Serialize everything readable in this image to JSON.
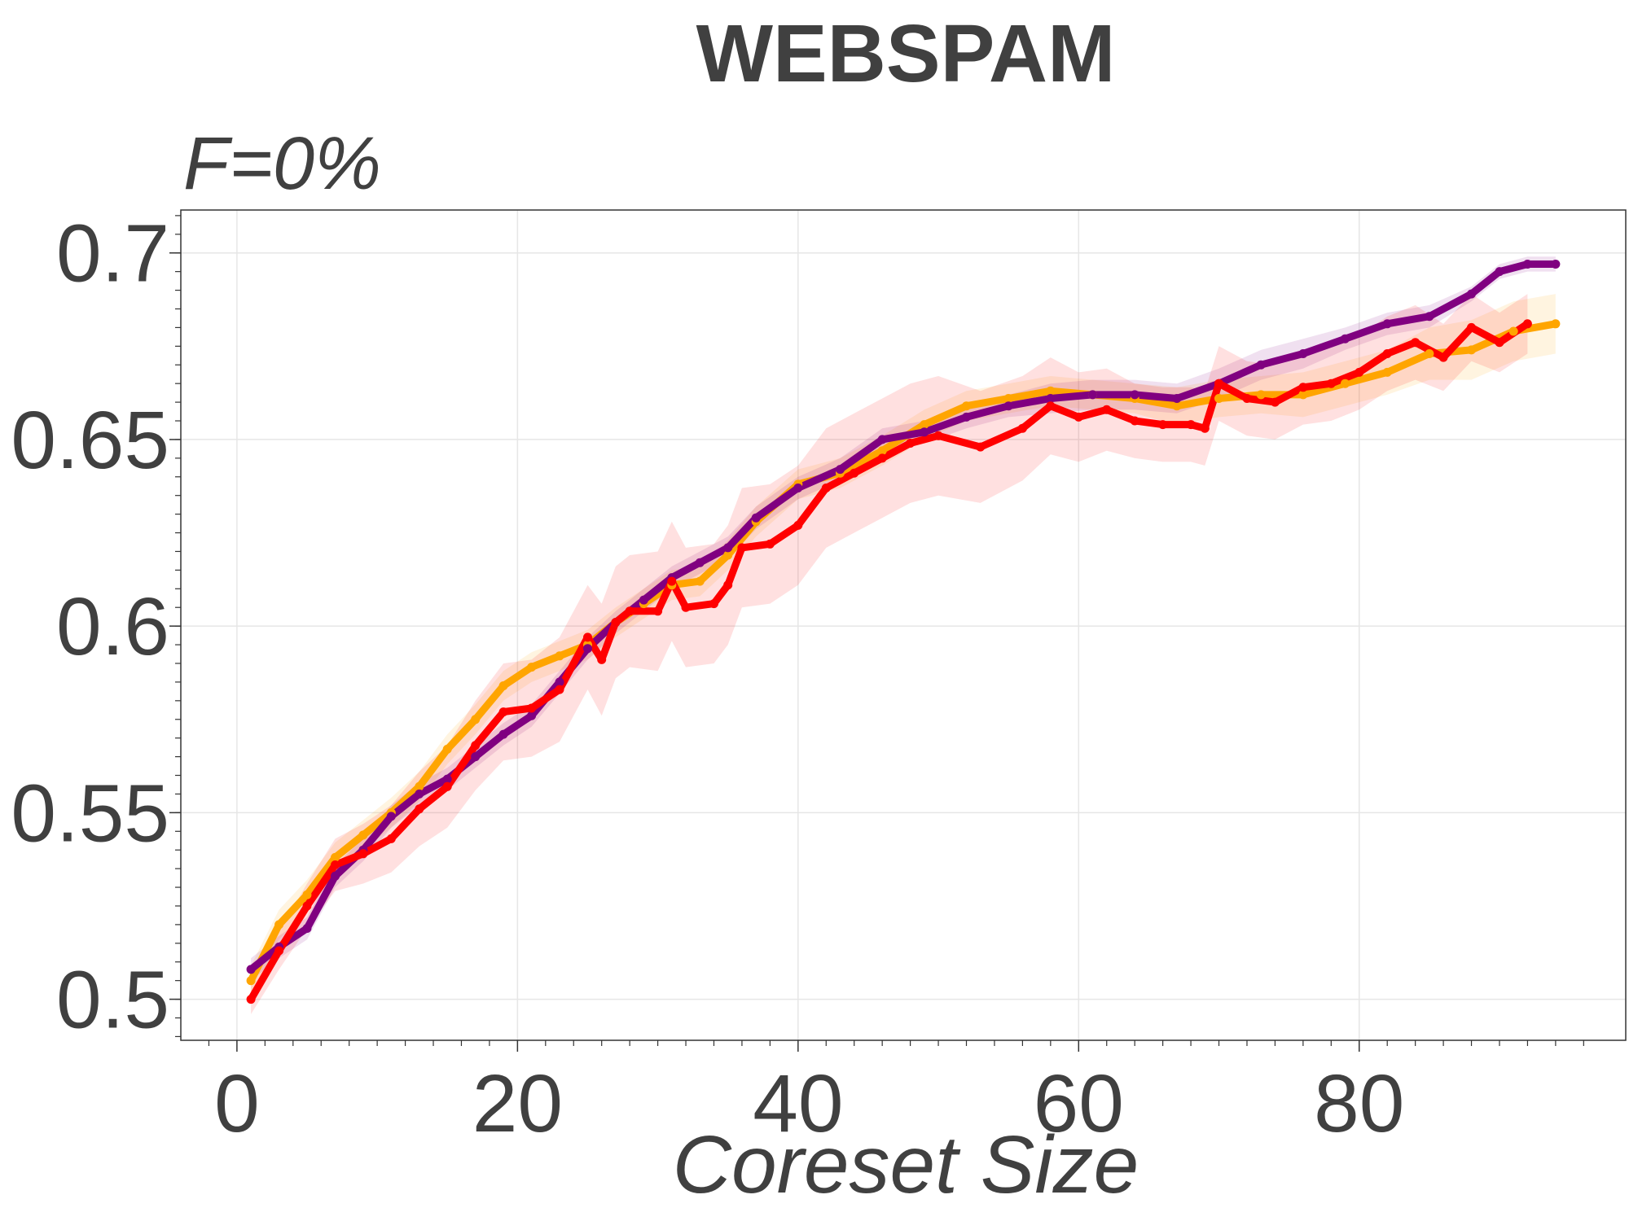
{
  "chart_data": {
    "type": "line",
    "title": "WEBSPAM",
    "subtitle": "F=0%",
    "xlabel": "Coreset Size",
    "ylabel": "",
    "xlim": [
      -4,
      99
    ],
    "ylim": [
      0.489,
      0.7115
    ],
    "xticks": [
      0,
      20,
      40,
      60,
      80
    ],
    "yticks": [
      0.5,
      0.55,
      0.6,
      0.65,
      0.7
    ],
    "xtick_labels": [
      "0",
      "20",
      "40",
      "60",
      "80"
    ],
    "ytick_labels": [
      "0.5",
      "0.55",
      "0.6",
      "0.65",
      "0.7"
    ],
    "grid": true,
    "series": [
      {
        "color": "#ffa500",
        "x": [
          1,
          3,
          5,
          7,
          9,
          11,
          13,
          15,
          17,
          19,
          21,
          23,
          25,
          27,
          29,
          31,
          33,
          35,
          37,
          40,
          43,
          46,
          49,
          52,
          55,
          58,
          61,
          64,
          67,
          70,
          73,
          76,
          79,
          82,
          85,
          88,
          91,
          94
        ],
        "y": [
          0.505,
          0.52,
          0.528,
          0.538,
          0.544,
          0.55,
          0.557,
          0.567,
          0.575,
          0.584,
          0.589,
          0.592,
          0.595,
          0.601,
          0.606,
          0.611,
          0.612,
          0.619,
          0.628,
          0.638,
          0.641,
          0.647,
          0.654,
          0.659,
          0.661,
          0.663,
          0.662,
          0.661,
          0.659,
          0.661,
          0.662,
          0.662,
          0.665,
          0.668,
          0.673,
          0.674,
          0.679,
          0.681
        ],
        "band": [
          0.004,
          0.004,
          0.004,
          0.004,
          0.004,
          0.004,
          0.004,
          0.004,
          0.004,
          0.004,
          0.004,
          0.004,
          0.004,
          0.004,
          0.004,
          0.004,
          0.004,
          0.004,
          0.004,
          0.004,
          0.004,
          0.004,
          0.004,
          0.004,
          0.004,
          0.004,
          0.004,
          0.004,
          0.005,
          0.005,
          0.005,
          0.006,
          0.006,
          0.006,
          0.007,
          0.008,
          0.008,
          0.008
        ]
      },
      {
        "color": "#800080",
        "x": [
          1,
          3,
          5,
          7,
          9,
          11,
          13,
          15,
          17,
          19,
          21,
          23,
          25,
          27,
          29,
          31,
          33,
          35,
          37,
          40,
          43,
          46,
          49,
          52,
          55,
          58,
          61,
          64,
          67,
          70,
          73,
          76,
          79,
          82,
          85,
          88,
          90,
          92,
          94
        ],
        "y": [
          0.508,
          0.514,
          0.519,
          0.533,
          0.54,
          0.549,
          0.555,
          0.559,
          0.565,
          0.571,
          0.576,
          0.585,
          0.594,
          0.601,
          0.607,
          0.613,
          0.617,
          0.621,
          0.629,
          0.637,
          0.642,
          0.65,
          0.652,
          0.656,
          0.659,
          0.661,
          0.662,
          0.662,
          0.661,
          0.665,
          0.67,
          0.673,
          0.677,
          0.681,
          0.683,
          0.689,
          0.695,
          0.697,
          0.697
        ],
        "band": [
          0.003,
          0.003,
          0.003,
          0.003,
          0.003,
          0.003,
          0.003,
          0.003,
          0.003,
          0.003,
          0.003,
          0.003,
          0.003,
          0.003,
          0.003,
          0.003,
          0.003,
          0.003,
          0.003,
          0.003,
          0.003,
          0.003,
          0.003,
          0.003,
          0.003,
          0.004,
          0.004,
          0.004,
          0.004,
          0.004,
          0.004,
          0.004,
          0.003,
          0.003,
          0.003,
          0.002,
          0.002,
          0.002,
          0.002
        ]
      },
      {
        "color": "#ff0000",
        "x": [
          1,
          3,
          5,
          7,
          9,
          11,
          13,
          15,
          17,
          19,
          21,
          23,
          25,
          26,
          27,
          28,
          30,
          31,
          32,
          34,
          35,
          36,
          38,
          40,
          42,
          44,
          46,
          48,
          50,
          53,
          56,
          58,
          60,
          62,
          64,
          66,
          68,
          69,
          70,
          72,
          74,
          76,
          78,
          80,
          82,
          84,
          86,
          88,
          90,
          92
        ],
        "y": [
          0.5,
          0.513,
          0.525,
          0.536,
          0.539,
          0.543,
          0.551,
          0.557,
          0.568,
          0.577,
          0.578,
          0.583,
          0.597,
          0.591,
          0.601,
          0.604,
          0.604,
          0.612,
          0.605,
          0.606,
          0.611,
          0.621,
          0.622,
          0.627,
          0.637,
          0.641,
          0.645,
          0.649,
          0.651,
          0.648,
          0.653,
          0.659,
          0.656,
          0.658,
          0.655,
          0.654,
          0.654,
          0.653,
          0.665,
          0.661,
          0.66,
          0.664,
          0.665,
          0.668,
          0.673,
          0.676,
          0.672,
          0.68,
          0.676,
          0.681
        ],
        "band": [
          0.004,
          0.005,
          0.006,
          0.007,
          0.008,
          0.009,
          0.01,
          0.011,
          0.012,
          0.013,
          0.013,
          0.014,
          0.014,
          0.015,
          0.015,
          0.015,
          0.016,
          0.016,
          0.016,
          0.016,
          0.016,
          0.016,
          0.016,
          0.016,
          0.016,
          0.016,
          0.016,
          0.016,
          0.016,
          0.015,
          0.014,
          0.013,
          0.012,
          0.011,
          0.01,
          0.01,
          0.01,
          0.01,
          0.01,
          0.01,
          0.01,
          0.01,
          0.01,
          0.01,
          0.01,
          0.01,
          0.009,
          0.009,
          0.008,
          0.008
        ]
      }
    ]
  }
}
